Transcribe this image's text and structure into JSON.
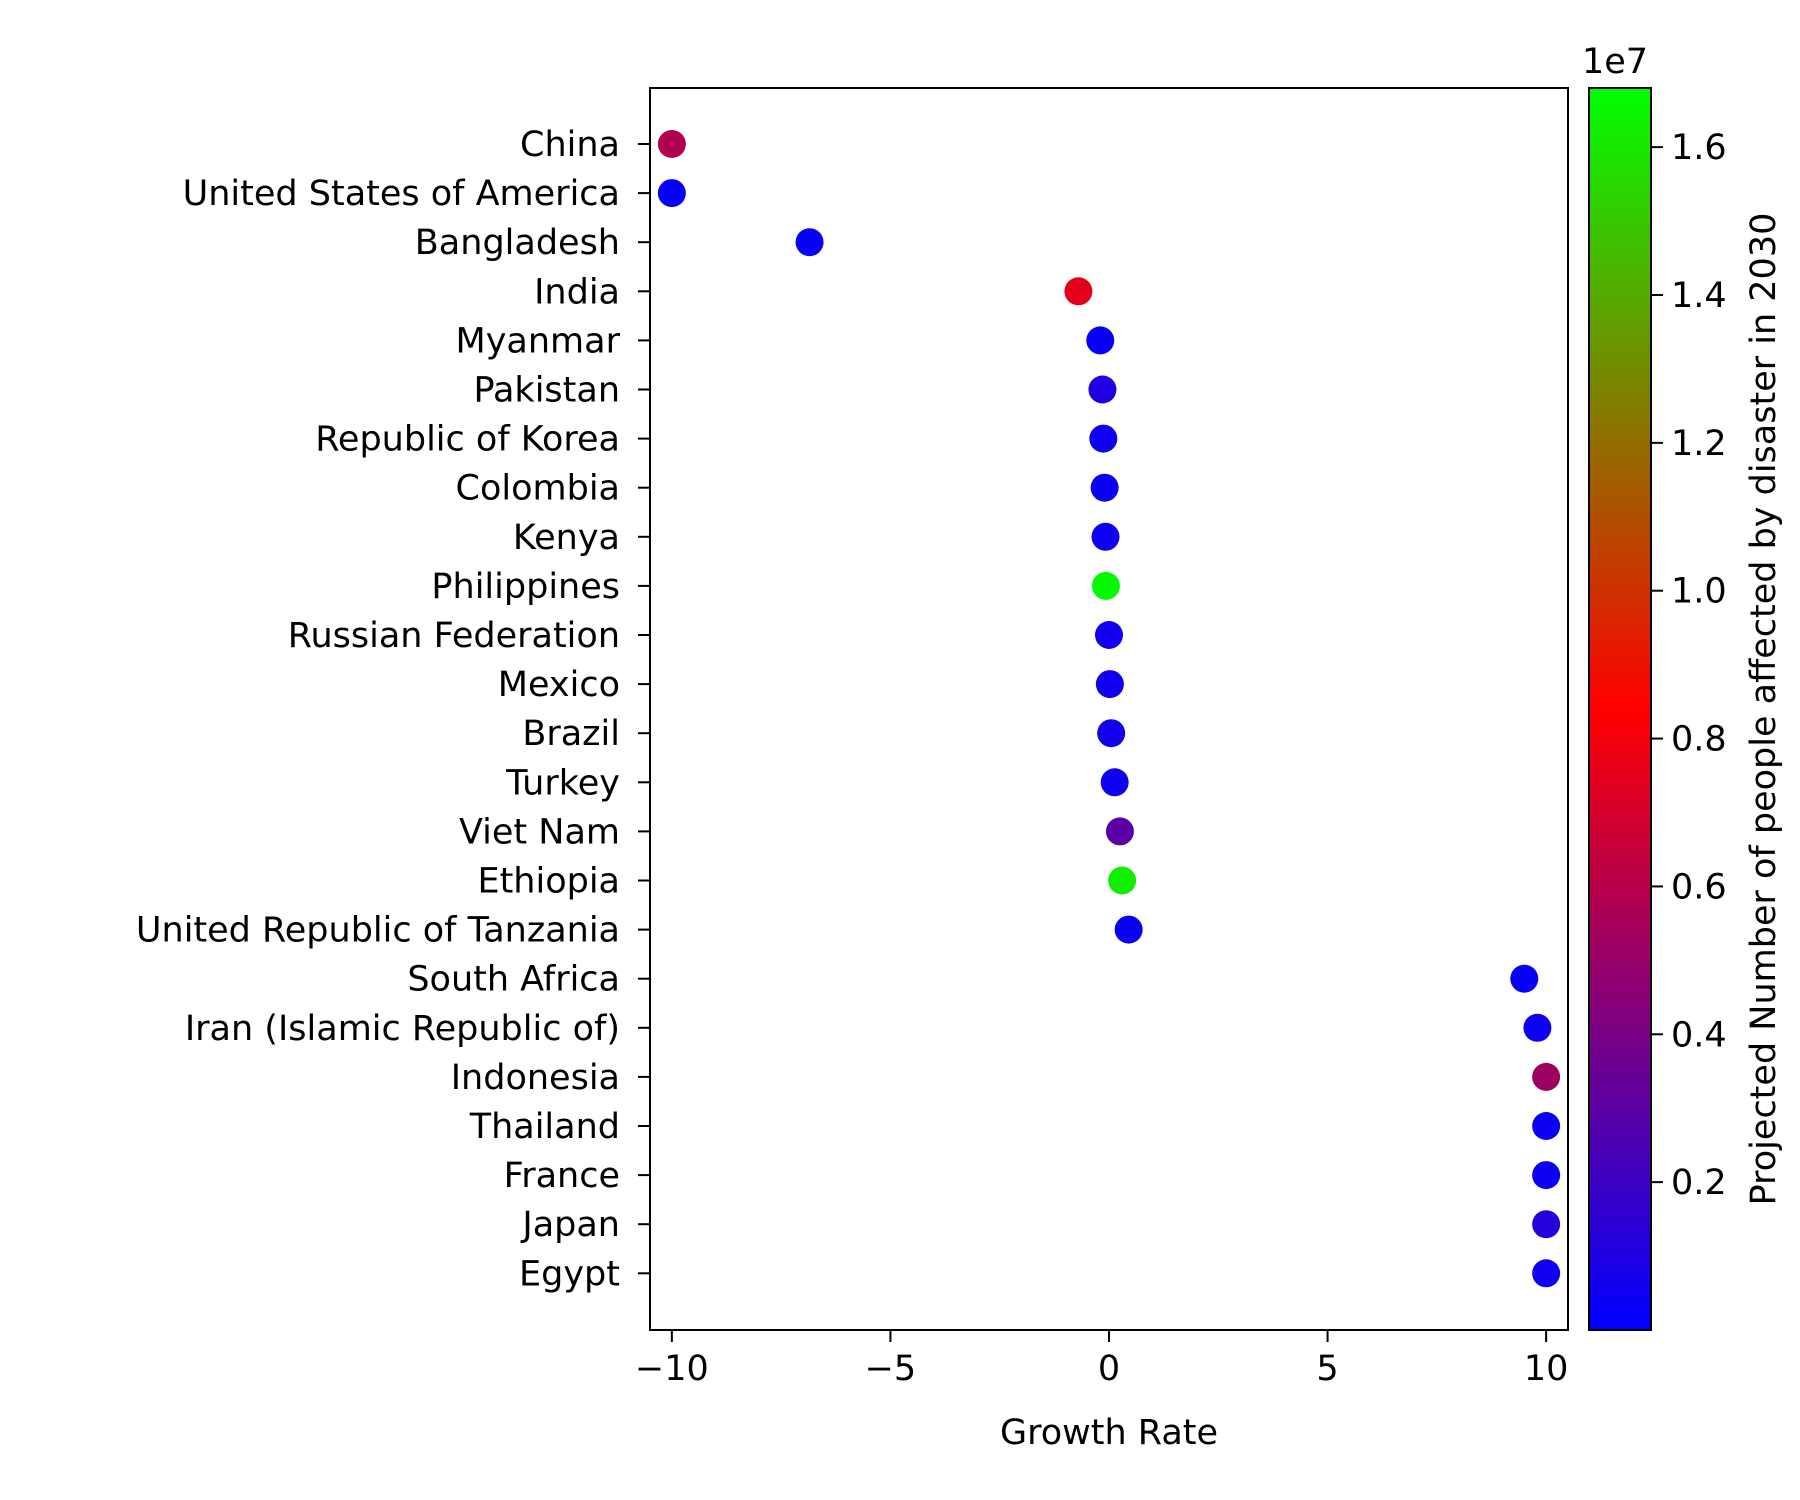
{
  "chart_data": {
    "type": "scatter",
    "xlabel": "Growth Rate",
    "ylabel": "",
    "xlim": [
      -10.5,
      10.5
    ],
    "x_ticks": [
      -10,
      -5,
      0,
      5,
      10
    ],
    "x_tick_labels": [
      "−10",
      "−5",
      "0",
      "5",
      "10"
    ],
    "grid": false,
    "colorbar": {
      "label": "Projected Number of people affected by disaster in 2030",
      "offset_label": "1e7",
      "range": [
        0.0,
        1.68
      ],
      "ticks": [
        0.2,
        0.4,
        0.6,
        0.8,
        1.0,
        1.2,
        1.4,
        1.6
      ],
      "tick_labels": [
        "0.2",
        "0.4",
        "0.6",
        "0.8",
        "1.0",
        "1.2",
        "1.4",
        "1.6"
      ],
      "colors": [
        "#0000ff",
        "#ff0000",
        "#00ff00"
      ]
    },
    "points": [
      {
        "country": "China",
        "x": -10.0,
        "value": 0.58
      },
      {
        "country": "United States of America",
        "x": -10.0,
        "value": 0.02
      },
      {
        "country": "Bangladesh",
        "x": -6.85,
        "value": 0.03
      },
      {
        "country": "India",
        "x": -0.7,
        "value": 0.75
      },
      {
        "country": "Myanmar",
        "x": -0.2,
        "value": 0.03
      },
      {
        "country": "Pakistan",
        "x": -0.15,
        "value": 0.1
      },
      {
        "country": "Republic of Korea",
        "x": -0.13,
        "value": 0.05
      },
      {
        "country": "Colombia",
        "x": -0.1,
        "value": 0.04
      },
      {
        "country": "Kenya",
        "x": -0.08,
        "value": 0.05
      },
      {
        "country": "Philippines",
        "x": -0.07,
        "value": 1.66
      },
      {
        "country": "Russian Federation",
        "x": 0.0,
        "value": 0.06
      },
      {
        "country": "Mexico",
        "x": 0.02,
        "value": 0.05
      },
      {
        "country": "Brazil",
        "x": 0.05,
        "value": 0.06
      },
      {
        "country": "Turkey",
        "x": 0.13,
        "value": 0.05
      },
      {
        "country": "Viet Nam",
        "x": 0.25,
        "value": 0.3
      },
      {
        "country": "Ethiopia",
        "x": 0.3,
        "value": 1.62
      },
      {
        "country": "United Republic of Tanzania",
        "x": 0.45,
        "value": 0.04
      },
      {
        "country": "South Africa",
        "x": 9.5,
        "value": 0.03
      },
      {
        "country": "Iran (Islamic Republic of)",
        "x": 9.8,
        "value": 0.05
      },
      {
        "country": "Indonesia",
        "x": 10.0,
        "value": 0.52
      },
      {
        "country": "Thailand",
        "x": 10.0,
        "value": 0.04
      },
      {
        "country": "France",
        "x": 10.0,
        "value": 0.04
      },
      {
        "country": "Japan",
        "x": 10.0,
        "value": 0.12
      },
      {
        "country": "Egypt",
        "x": 10.0,
        "value": 0.05
      }
    ]
  }
}
